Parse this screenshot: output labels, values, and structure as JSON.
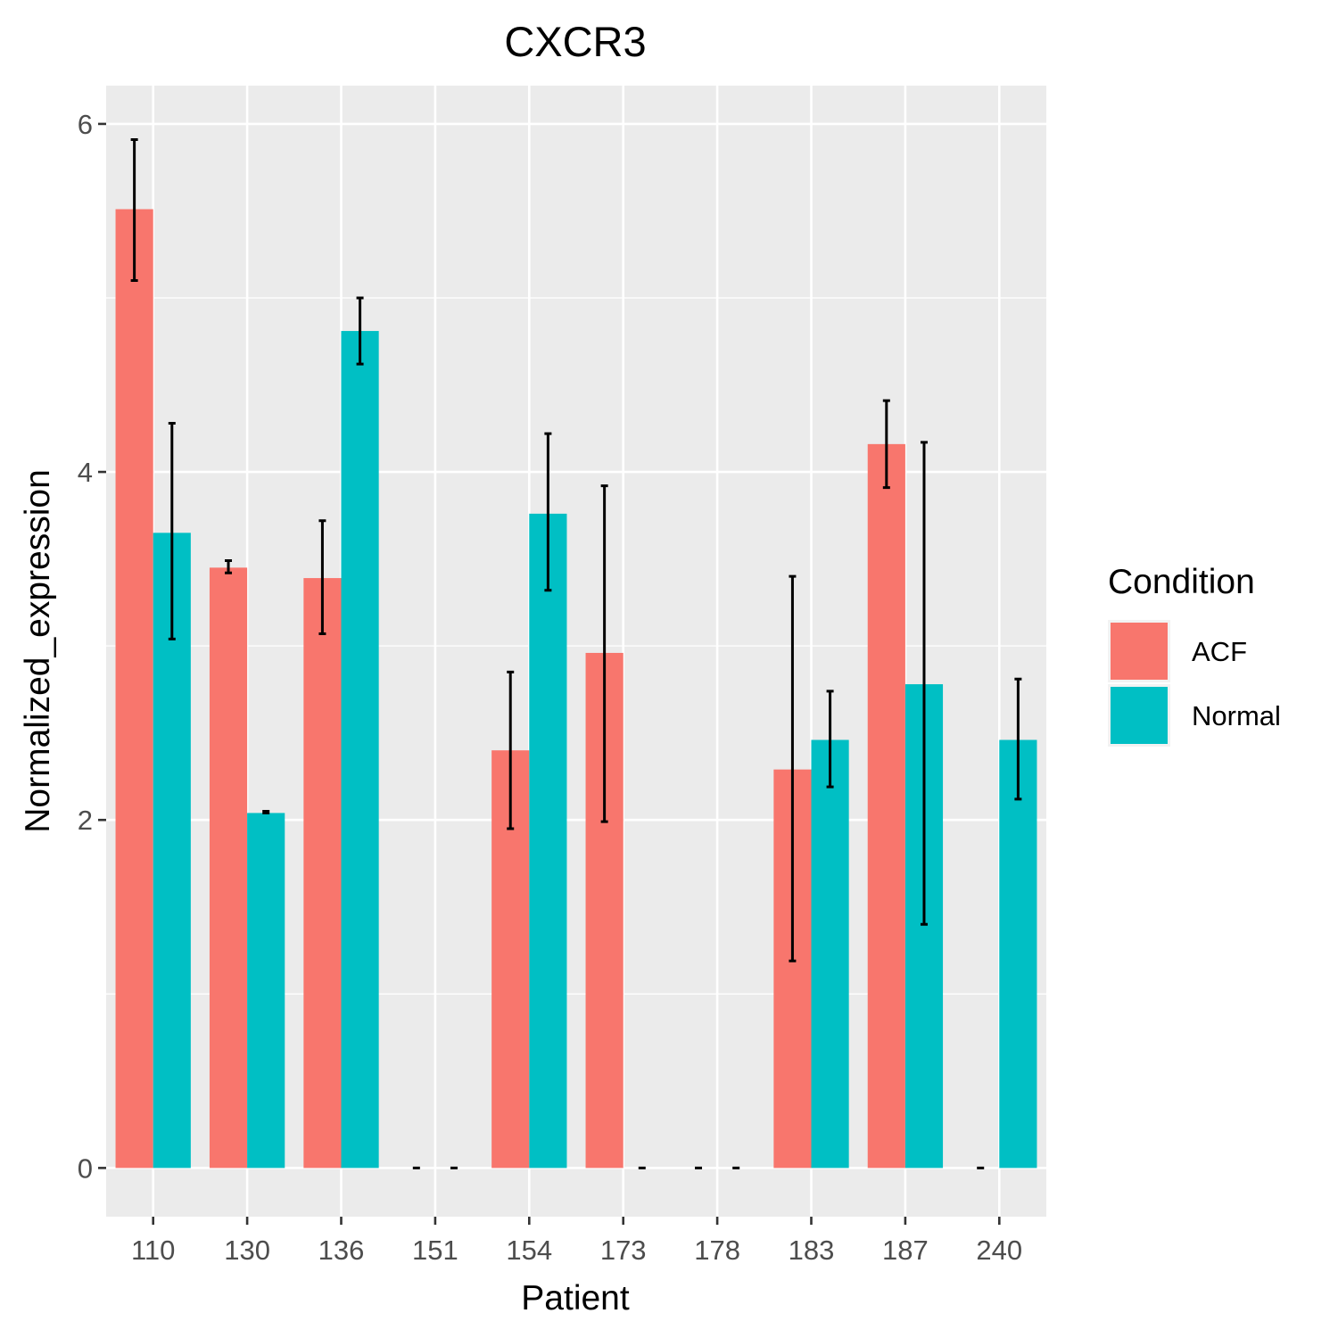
{
  "chart_data": {
    "type": "bar",
    "title": "CXCR3",
    "xlabel": "Patient",
    "ylabel": "Normalized_expression",
    "categories": [
      "110",
      "130",
      "136",
      "151",
      "154",
      "173",
      "178",
      "183",
      "187",
      "240"
    ],
    "ylim": [
      -0.28,
      6.22
    ],
    "yticks": [
      0,
      2,
      4,
      6
    ],
    "grid": true,
    "legend": {
      "title": "Condition",
      "position": "right"
    },
    "series": [
      {
        "name": "ACF",
        "color": "#F8766D",
        "values": [
          5.51,
          3.45,
          3.39,
          0,
          2.4,
          2.96,
          0,
          2.29,
          4.16,
          0
        ],
        "error": [
          [
            5.1,
            5.91
          ],
          [
            3.42,
            3.49
          ],
          [
            3.07,
            3.72
          ],
          [
            0,
            0
          ],
          [
            1.95,
            2.85
          ],
          [
            1.99,
            3.92
          ],
          [
            0,
            0
          ],
          [
            1.19,
            3.4
          ],
          [
            3.91,
            4.41
          ],
          [
            0,
            0
          ]
        ]
      },
      {
        "name": "Normal",
        "color": "#00BFC4",
        "values": [
          3.65,
          2.04,
          4.81,
          0,
          3.76,
          0,
          0,
          2.46,
          2.78,
          2.46
        ],
        "error": [
          [
            3.04,
            4.28
          ],
          [
            2.04,
            2.05
          ],
          [
            4.62,
            5.0
          ],
          [
            0,
            0
          ],
          [
            3.32,
            4.22
          ],
          [
            0,
            0
          ],
          [
            0,
            0
          ],
          [
            2.19,
            2.74
          ],
          [
            1.4,
            4.17
          ],
          [
            2.12,
            2.81
          ]
        ]
      }
    ]
  }
}
